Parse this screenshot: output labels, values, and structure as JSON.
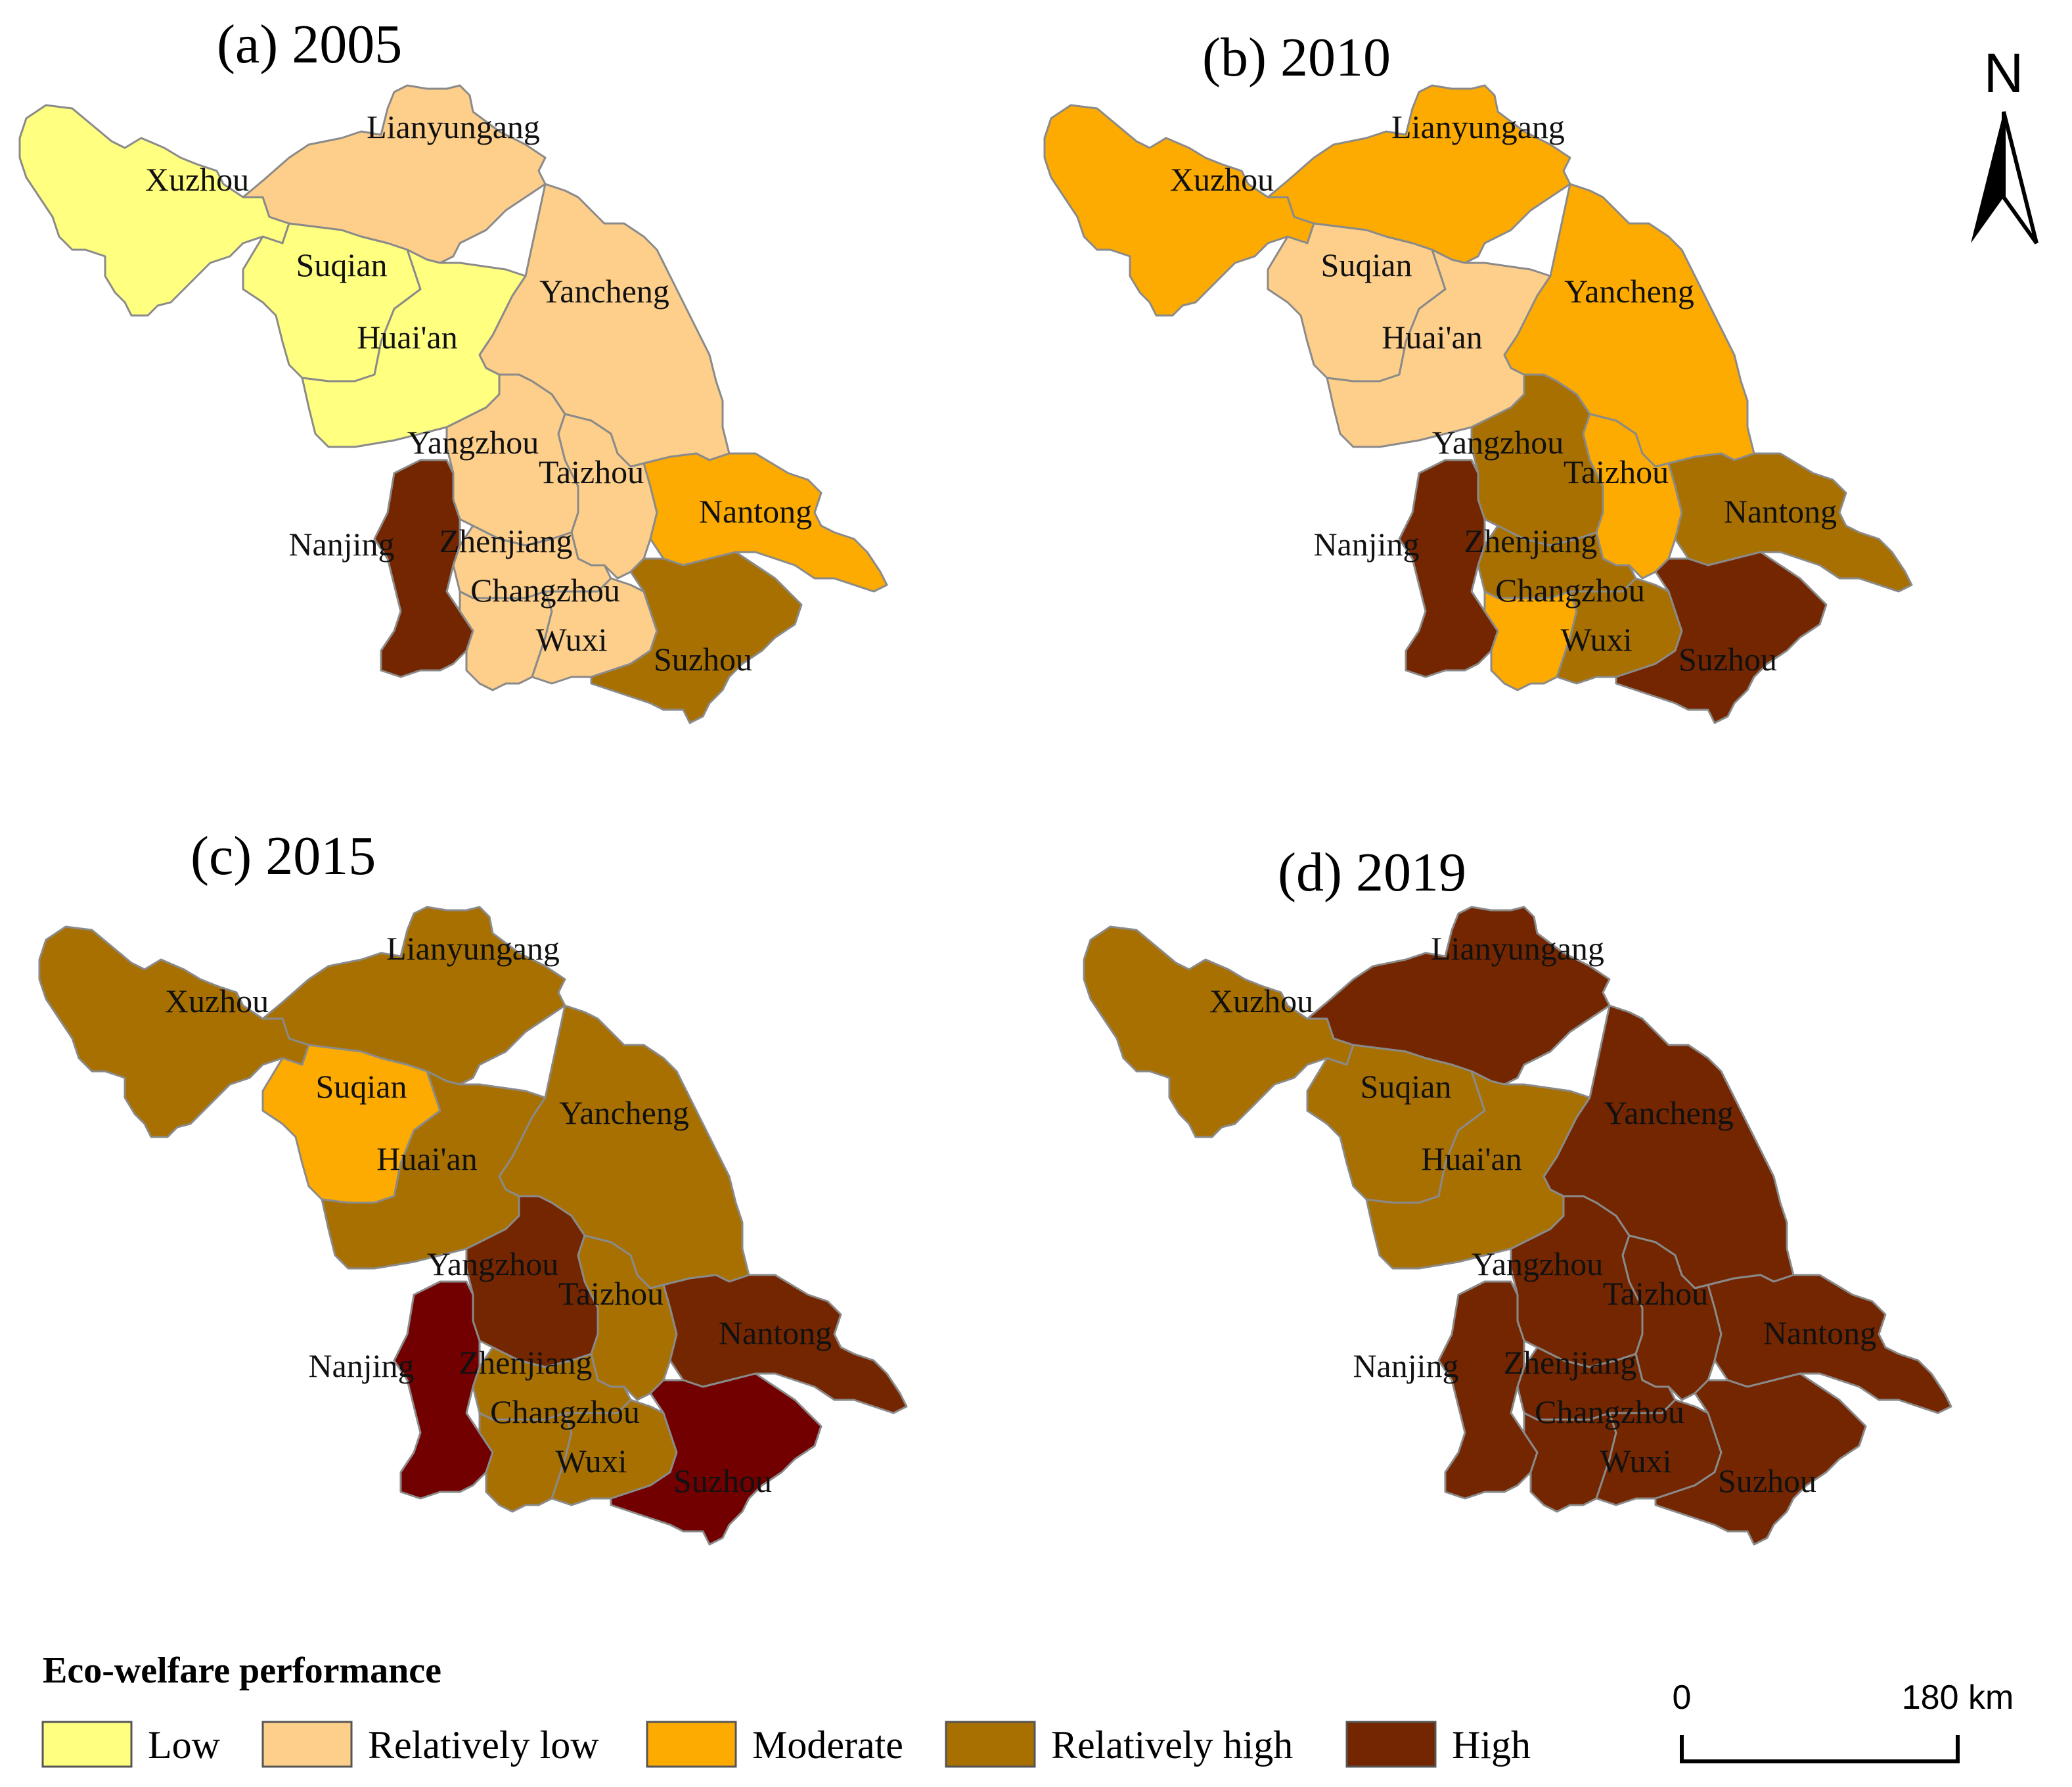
{
  "legend": {
    "title": "Eco-welfare performance",
    "classes": [
      {
        "key": "low",
        "label": "Low",
        "color": "#FFFF80"
      },
      {
        "key": "rel_low",
        "label": "Relatively low",
        "color": "#FDCF8B"
      },
      {
        "key": "moderate",
        "label": "Moderate",
        "color": "#FDAB00"
      },
      {
        "key": "rel_high",
        "label": "Relatively high",
        "color": "#A87000"
      },
      {
        "key": "high",
        "label": "High",
        "color": "#732600"
      }
    ]
  },
  "nanjing_2015_color": "#730000",
  "north_arrow": {
    "label": "N"
  },
  "scale_bar": {
    "start_label": "0",
    "end_label": "180 km"
  },
  "panels": [
    {
      "title": "(a) 2005",
      "classes": {
        "Xuzhou": "low",
        "Suqian": "low",
        "Huai'an": "low",
        "Lianyungang": "rel_low",
        "Yancheng": "rel_low",
        "Yangzhou": "rel_low",
        "Taizhou": "rel_low",
        "Zhenjiang": "rel_low",
        "Changzhou": "rel_low",
        "Wuxi": "rel_low",
        "Nantong": "moderate",
        "Suzhou": "rel_high",
        "Nanjing": "high"
      }
    },
    {
      "title": "(b) 2010",
      "classes": {
        "Xuzhou": "moderate",
        "Lianyungang": "moderate",
        "Yancheng": "moderate",
        "Suqian": "rel_low",
        "Huai'an": "rel_low",
        "Yangzhou": "rel_high",
        "Taizhou": "moderate",
        "Nantong": "rel_high",
        "Zhenjiang": "rel_high",
        "Changzhou": "moderate",
        "Wuxi": "rel_high",
        "Suzhou": "high",
        "Nanjing": "high"
      }
    },
    {
      "title": "(c) 2015",
      "classes": {
        "Xuzhou": "rel_high",
        "Lianyungang": "rel_high",
        "Suqian": "moderate",
        "Huai'an": "rel_high",
        "Yancheng": "rel_high",
        "Yangzhou": "high",
        "Taizhou": "rel_high",
        "Nantong": "high",
        "Zhenjiang": "rel_high",
        "Changzhou": "rel_high",
        "Wuxi": "rel_high",
        "Suzhou": "high",
        "Nanjing": "high"
      }
    },
    {
      "title": "(d) 2019",
      "classes": {
        "Xuzhou": "rel_high",
        "Suqian": "rel_high",
        "Huai'an": "rel_high",
        "Lianyungang": "high",
        "Yancheng": "high",
        "Yangzhou": "high",
        "Taizhou": "high",
        "Nantong": "high",
        "Nanjing": "high",
        "Zhenjiang": "high",
        "Changzhou": "high",
        "Wuxi": "high",
        "Suzhou": "high"
      }
    }
  ]
}
